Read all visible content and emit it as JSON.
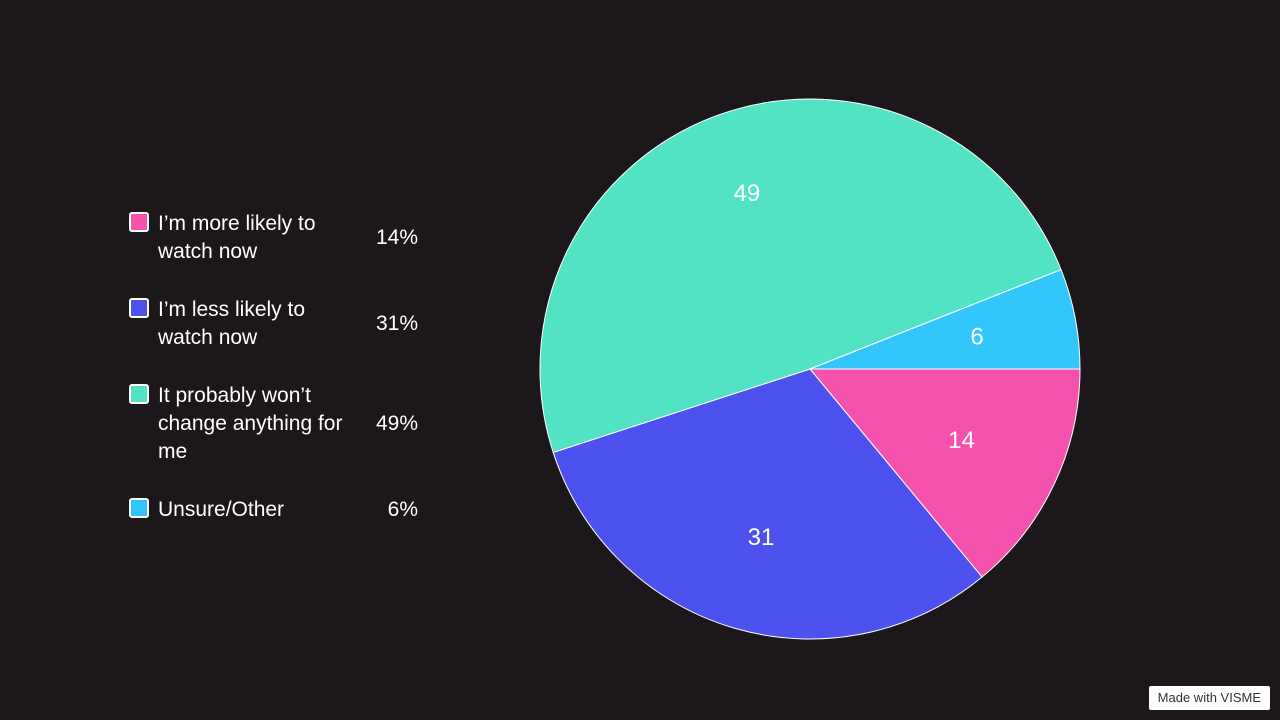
{
  "chart_data": {
    "type": "pie",
    "slices": [
      {
        "label": "I’m more likely to watch now",
        "value": 14,
        "percent_text": "14%",
        "slice_text": "14",
        "color": "#f552ad"
      },
      {
        "label": "I’m less likely to watch now",
        "value": 31,
        "percent_text": "31%",
        "slice_text": "31",
        "color": "#4d52ee"
      },
      {
        "label": "It probably won’t change anything for me",
        "value": 49,
        "percent_text": "49%",
        "slice_text": "49",
        "color": "#52e3c5"
      },
      {
        "label": "Unsure/Other",
        "value": 6,
        "percent_text": "6%",
        "slice_text": "6",
        "color": "#33c6fc"
      }
    ],
    "legend_position": "left",
    "background": "#1c171b"
  },
  "watermark": {
    "text": "Made with VISME"
  }
}
